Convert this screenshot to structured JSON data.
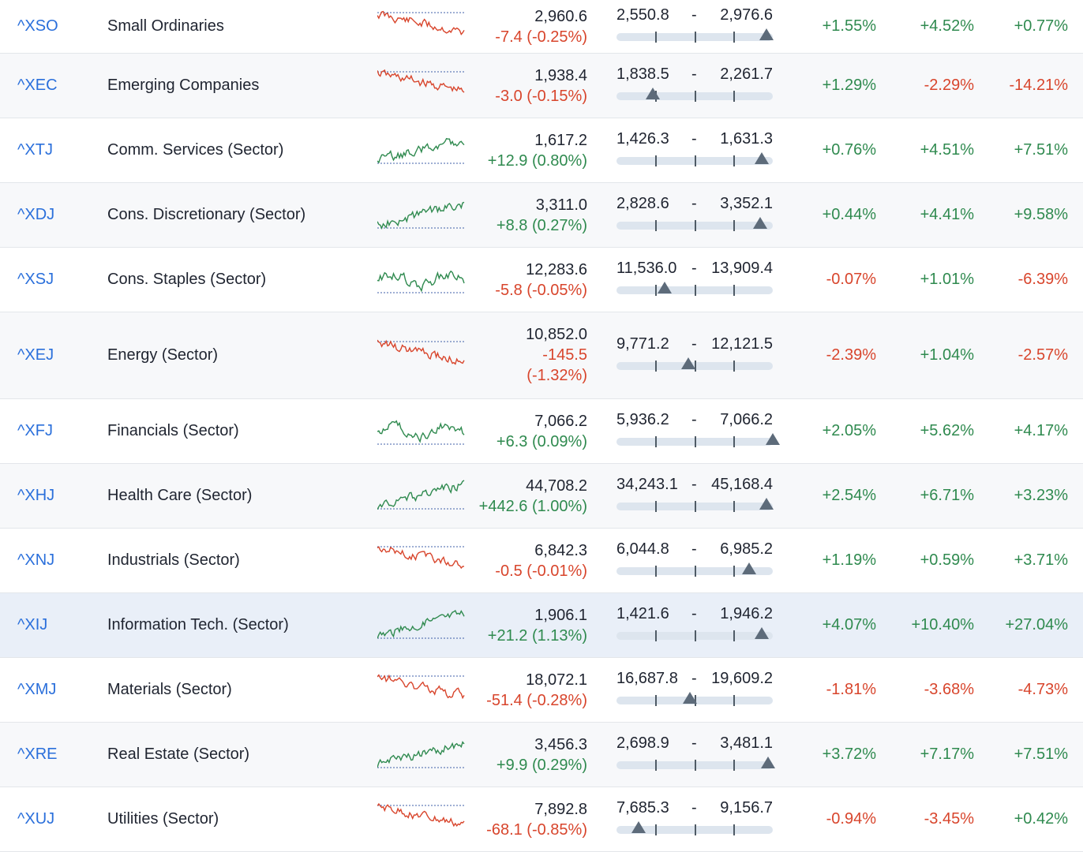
{
  "colors": {
    "up": "#2f8a4f",
    "down": "#d8452c",
    "link": "#2a6fdb",
    "range_bar": "#dde5ee",
    "range_marker": "#5d6b7a"
  },
  "rows": [
    {
      "symbol": "^XSO",
      "name": "Small Ordinaries",
      "trend": "down",
      "spark_position": "below-line",
      "last": "2,960.6",
      "change": "-7.4 (-0.25%)",
      "change_dir": "down",
      "range_low": "2,550.8",
      "range_high": "2,976.6",
      "range_position": 0.96,
      "p1": "+1.55%",
      "p1_dir": "up",
      "p2": "+4.52%",
      "p2_dir": "up",
      "p3": "+0.77%",
      "p3_dir": "up"
    },
    {
      "symbol": "^XEC",
      "name": "Emerging Companies",
      "trend": "down",
      "spark_position": "below-line",
      "last": "1,938.4",
      "change": "-3.0 (-0.15%)",
      "change_dir": "down",
      "range_low": "1,838.5",
      "range_high": "2,261.7",
      "range_position": 0.23,
      "p1": "+1.29%",
      "p1_dir": "up",
      "p2": "-2.29%",
      "p2_dir": "down",
      "p3": "-14.21%",
      "p3_dir": "down"
    },
    {
      "symbol": "^XTJ",
      "name": "Comm. Services (Sector)",
      "trend": "up",
      "spark_position": "above-line",
      "last": "1,617.2",
      "change": "+12.9 (0.80%)",
      "change_dir": "up",
      "range_low": "1,426.3",
      "range_high": "1,631.3",
      "range_position": 0.93,
      "p1": "+0.76%",
      "p1_dir": "up",
      "p2": "+4.51%",
      "p2_dir": "up",
      "p3": "+7.51%",
      "p3_dir": "up"
    },
    {
      "symbol": "^XDJ",
      "name": "Cons. Discretionary (Sector)",
      "trend": "up",
      "spark_position": "above-line",
      "last": "3,311.0",
      "change": "+8.8 (0.27%)",
      "change_dir": "up",
      "range_low": "2,828.6",
      "range_high": "3,352.1",
      "range_position": 0.92,
      "p1": "+0.44%",
      "p1_dir": "up",
      "p2": "+4.41%",
      "p2_dir": "up",
      "p3": "+9.58%",
      "p3_dir": "up"
    },
    {
      "symbol": "^XSJ",
      "name": "Cons. Staples (Sector)",
      "trend": "mixed",
      "spark_position": "above-line",
      "last": "12,283.6",
      "change": "-5.8 (-0.05%)",
      "change_dir": "down",
      "range_low": "11,536.0",
      "range_high": "13,909.4",
      "range_position": 0.31,
      "p1": "-0.07%",
      "p1_dir": "down",
      "p2": "+1.01%",
      "p2_dir": "up",
      "p3": "-6.39%",
      "p3_dir": "down"
    },
    {
      "symbol": "^XEJ",
      "name": "Energy (Sector)",
      "trend": "down",
      "spark_position": "below-line",
      "last": "10,852.0",
      "change": "-145.5 (-1.32%)",
      "change_dir": "down",
      "range_low": "9,771.2",
      "range_high": "12,121.5",
      "range_position": 0.46,
      "p1": "-2.39%",
      "p1_dir": "down",
      "p2": "+1.04%",
      "p2_dir": "up",
      "p3": "-2.57%",
      "p3_dir": "down"
    },
    {
      "symbol": "^XFJ",
      "name": "Financials (Sector)",
      "trend": "mixed",
      "spark_position": "above-line",
      "last": "7,066.2",
      "change": "+6.3 (0.09%)",
      "change_dir": "up",
      "range_low": "5,936.2",
      "range_high": "7,066.2",
      "range_position": 1.0,
      "p1": "+2.05%",
      "p1_dir": "up",
      "p2": "+5.62%",
      "p2_dir": "up",
      "p3": "+4.17%",
      "p3_dir": "up"
    },
    {
      "symbol": "^XHJ",
      "name": "Health Care (Sector)",
      "trend": "up",
      "spark_position": "above-line",
      "last": "44,708.2",
      "change": "+442.6 (1.00%)",
      "change_dir": "up",
      "range_low": "34,243.1",
      "range_high": "45,168.4",
      "range_position": 0.96,
      "p1": "+2.54%",
      "p1_dir": "up",
      "p2": "+6.71%",
      "p2_dir": "up",
      "p3": "+3.23%",
      "p3_dir": "up"
    },
    {
      "symbol": "^XNJ",
      "name": "Industrials (Sector)",
      "trend": "down",
      "spark_position": "below-line",
      "last": "6,842.3",
      "change": "-0.5 (-0.01%)",
      "change_dir": "down",
      "range_low": "6,044.8",
      "range_high": "6,985.2",
      "range_position": 0.85,
      "p1": "+1.19%",
      "p1_dir": "up",
      "p2": "+0.59%",
      "p2_dir": "up",
      "p3": "+3.71%",
      "p3_dir": "up"
    },
    {
      "symbol": "^XIJ",
      "name": "Information Tech. (Sector)",
      "trend": "up",
      "spark_position": "above-line",
      "last": "1,906.1",
      "change": "+21.2 (1.13%)",
      "change_dir": "up",
      "range_low": "1,421.6",
      "range_high": "1,946.2",
      "range_position": 0.93,
      "p1": "+4.07%",
      "p1_dir": "up",
      "p2": "+10.40%",
      "p2_dir": "up",
      "p3": "+27.04%",
      "p3_dir": "up"
    },
    {
      "symbol": "^XMJ",
      "name": "Materials (Sector)",
      "trend": "down",
      "spark_position": "below-line",
      "last": "18,072.1",
      "change": "-51.4 (-0.28%)",
      "change_dir": "down",
      "range_low": "16,687.8",
      "range_high": "19,609.2",
      "range_position": 0.47,
      "p1": "-1.81%",
      "p1_dir": "down",
      "p2": "-3.68%",
      "p2_dir": "down",
      "p3": "-4.73%",
      "p3_dir": "down"
    },
    {
      "symbol": "^XRE",
      "name": "Real Estate (Sector)",
      "trend": "up",
      "spark_position": "above-line",
      "last": "3,456.3",
      "change": "+9.9 (0.29%)",
      "change_dir": "up",
      "range_low": "2,698.9",
      "range_high": "3,481.1",
      "range_position": 0.97,
      "p1": "+3.72%",
      "p1_dir": "up",
      "p2": "+7.17%",
      "p2_dir": "up",
      "p3": "+7.51%",
      "p3_dir": "up"
    },
    {
      "symbol": "^XUJ",
      "name": "Utilities (Sector)",
      "trend": "down",
      "spark_position": "below-line",
      "last": "7,892.8",
      "change": "-68.1 (-0.85%)",
      "change_dir": "down",
      "range_low": "7,685.3",
      "range_high": "9,156.7",
      "range_position": 0.14,
      "p1": "-0.94%",
      "p1_dir": "down",
      "p2": "-3.45%",
      "p2_dir": "down",
      "p3": "+0.42%",
      "p3_dir": "up"
    }
  ]
}
